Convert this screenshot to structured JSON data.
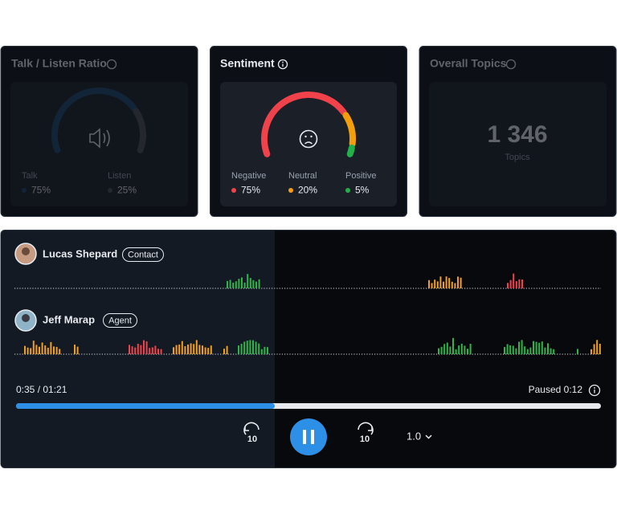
{
  "talk_listen": {
    "title": "Talk / Listen Ratio",
    "items": [
      {
        "name": "Talk",
        "value": 75,
        "label": "75%",
        "color": "#1d4670"
      },
      {
        "name": "Listen",
        "value": 25,
        "label": "25%",
        "color": "#4b4e54"
      }
    ]
  },
  "sentiment": {
    "title": "Sentiment",
    "items": [
      {
        "name": "Negative",
        "value": 75,
        "label": "75%",
        "color": "#f0424a"
      },
      {
        "name": "Neutral",
        "value": 20,
        "label": "20%",
        "color": "#f59e0b"
      },
      {
        "name": "Positive",
        "value": 5,
        "label": "5%",
        "color": "#22b04b"
      }
    ]
  },
  "topics": {
    "title": "Overall Topics",
    "count": "1 346",
    "caption": "Topics"
  },
  "player": {
    "speakers": [
      {
        "name": "Lucas Shepard",
        "role": "Contact"
      },
      {
        "name": "Jeff Marap",
        "role": "Agent"
      }
    ],
    "position": "0:35 / 01:21",
    "status": "Paused 0:12",
    "rewind": "10",
    "forward": "10",
    "speed": "1.0"
  }
}
